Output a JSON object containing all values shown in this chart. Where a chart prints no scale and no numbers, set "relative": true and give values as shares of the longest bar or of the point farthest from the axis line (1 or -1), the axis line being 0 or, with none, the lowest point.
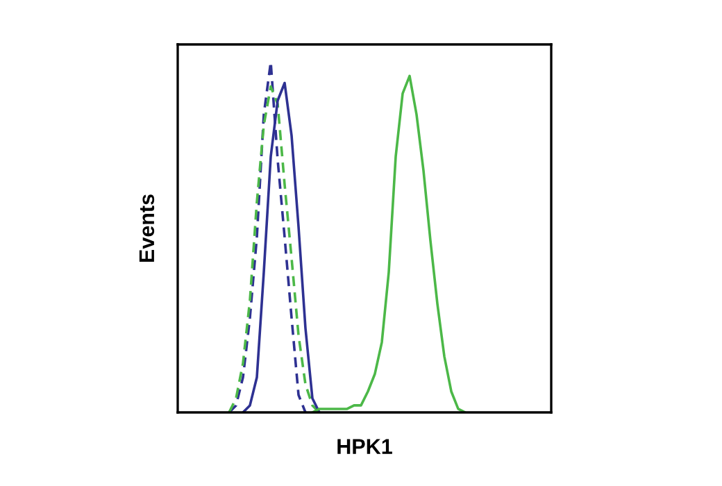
{
  "chart_data": {
    "type": "line",
    "relative": true,
    "xlabel": "HPK1",
    "ylabel": "Events",
    "categories": [
      null,
      null,
      null,
      null,
      null,
      null,
      null,
      null,
      null,
      null,
      null,
      null,
      null,
      null,
      null,
      null,
      null,
      null,
      null,
      null,
      null,
      null,
      null,
      null,
      null,
      null,
      null,
      null,
      null,
      null,
      null,
      null,
      null,
      null,
      null,
      null,
      null,
      null,
      null,
      null,
      null,
      null,
      null,
      null,
      null,
      null,
      null,
      null,
      null,
      null,
      null,
      null,
      null,
      null
    ],
    "series": [
      {
        "color": "#2e3192",
        "line_style": "dashed",
        "values": [
          null,
          null,
          null,
          null,
          null,
          null,
          null,
          0,
          0.02,
          0.1,
          0.27,
          0.5,
          0.85,
          1,
          0.72,
          0.5,
          0.27,
          0.05,
          0,
          null,
          null,
          null,
          null,
          null,
          null,
          null,
          null,
          null,
          null,
          null,
          null,
          null,
          null,
          null,
          null,
          null,
          null,
          null,
          null,
          null,
          null,
          null,
          null,
          null,
          null,
          null,
          null,
          null,
          null,
          null,
          null,
          null,
          null,
          null
        ]
      },
      {
        "color": "#4cb848",
        "line_style": "dashed",
        "values": [
          null,
          null,
          null,
          null,
          null,
          null,
          null,
          0,
          0.04,
          0.14,
          0.32,
          0.6,
          0.82,
          0.93,
          0.88,
          0.65,
          0.44,
          0.22,
          0.08,
          0.02,
          0,
          null,
          null,
          null,
          null,
          null,
          null,
          null,
          null,
          null,
          null,
          null,
          null,
          null,
          null,
          null,
          null,
          null,
          null,
          null,
          null,
          null,
          null,
          null,
          null,
          null,
          null,
          null,
          null,
          null,
          null,
          null,
          null,
          null
        ]
      },
      {
        "color": "#2e3192",
        "line_style": "solid",
        "values": [
          null,
          null,
          null,
          null,
          null,
          null,
          null,
          null,
          null,
          0,
          0.02,
          0.1,
          0.4,
          0.73,
          0.89,
          0.94,
          0.79,
          0.53,
          0.24,
          0.04,
          0,
          null,
          null,
          null,
          null,
          null,
          null,
          null,
          null,
          null,
          null,
          null,
          null,
          null,
          null,
          null,
          null,
          null,
          null,
          null,
          null,
          null,
          null,
          null,
          null,
          null,
          null,
          null,
          null,
          null,
          null,
          null,
          null,
          null
        ]
      },
      {
        "color": "#4cb848",
        "line_style": "solid",
        "values": [
          null,
          null,
          null,
          null,
          null,
          null,
          null,
          null,
          null,
          null,
          null,
          null,
          null,
          null,
          null,
          null,
          null,
          null,
          null,
          0,
          0.01,
          0.01,
          0.01,
          0.01,
          0.01,
          0.02,
          0.02,
          0.06,
          0.11,
          0.2,
          0.4,
          0.73,
          0.91,
          0.96,
          0.85,
          0.69,
          0.49,
          0.31,
          0.16,
          0.06,
          0.01,
          0,
          null,
          null,
          null,
          null,
          null,
          null,
          null,
          null,
          null,
          null,
          null,
          null
        ]
      }
    ]
  }
}
